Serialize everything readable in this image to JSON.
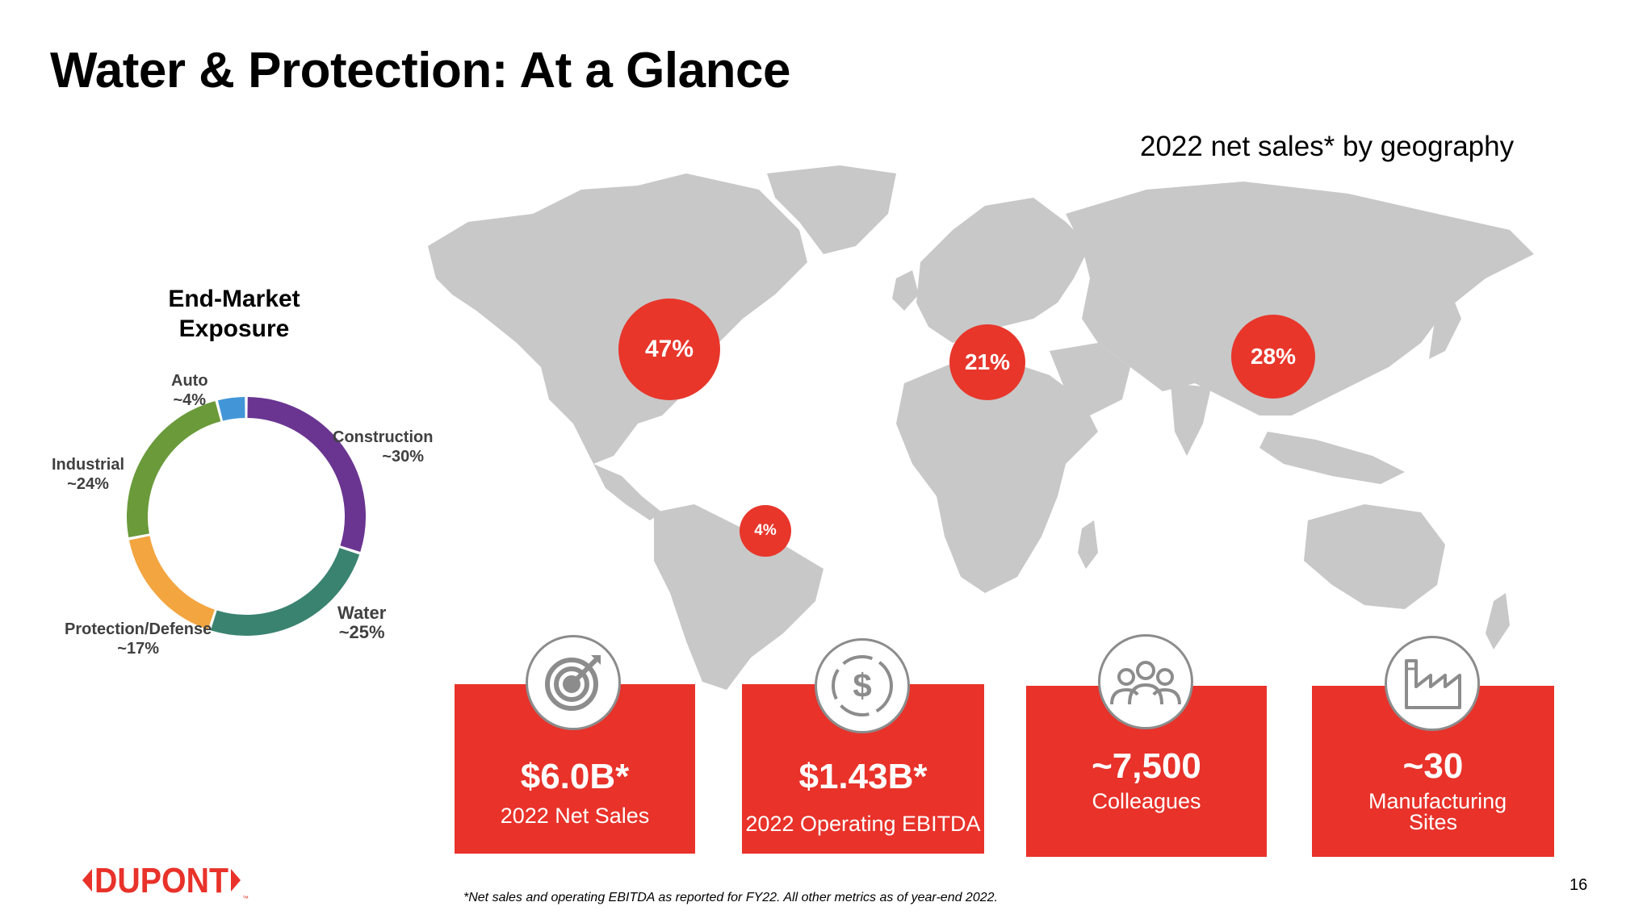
{
  "title": "Water & Protection: At a Glance",
  "geo_title": "2022 net sales* by geography",
  "donut_title": "End-Market Exposure",
  "colors": {
    "accent_red": "#e8322a",
    "bubble_red": "#e8362b",
    "map_gray": "#c8c8c8",
    "icon_gray": "#8c8c8c"
  },
  "chart_data": [
    {
      "type": "pie",
      "variant": "donut",
      "title": "End-Market Exposure",
      "categories": [
        "Construction",
        "Water",
        "Protection/Defense",
        "Industrial",
        "Auto"
      ],
      "values": [
        30,
        25,
        17,
        24,
        4
      ],
      "labels": [
        "~30%",
        "~25%",
        "~17%",
        "~24%",
        "~4%"
      ],
      "colors": [
        "#6a3591",
        "#3a8370",
        "#f3a540",
        "#6a9a3a",
        "#4296d8"
      ]
    },
    {
      "type": "map",
      "title": "2022 net sales* by geography",
      "regions": [
        "North America",
        "Europe",
        "Asia Pacific",
        "Latin America"
      ],
      "values": [
        47,
        21,
        28,
        4
      ],
      "labels": [
        "47%",
        "21%",
        "28%",
        "4%"
      ]
    }
  ],
  "metrics": [
    {
      "value": "$6.0B*",
      "label": "2022 Net Sales",
      "icon": "target-icon"
    },
    {
      "value": "$1.43B*",
      "label": "2022 Operating EBITDA",
      "icon": "dollar-icon"
    },
    {
      "value": "~7,500",
      "label": "Colleagues",
      "icon": "people-icon"
    },
    {
      "value": "~30",
      "label": "Manufacturing Sites",
      "icon": "factory-icon"
    }
  ],
  "footnote": "*Net sales and operating EBITDA as reported for FY22. All other metrics as of year-end 2022.",
  "page_number": "16",
  "logo_text": "DUPONT",
  "logo_tm": "™"
}
